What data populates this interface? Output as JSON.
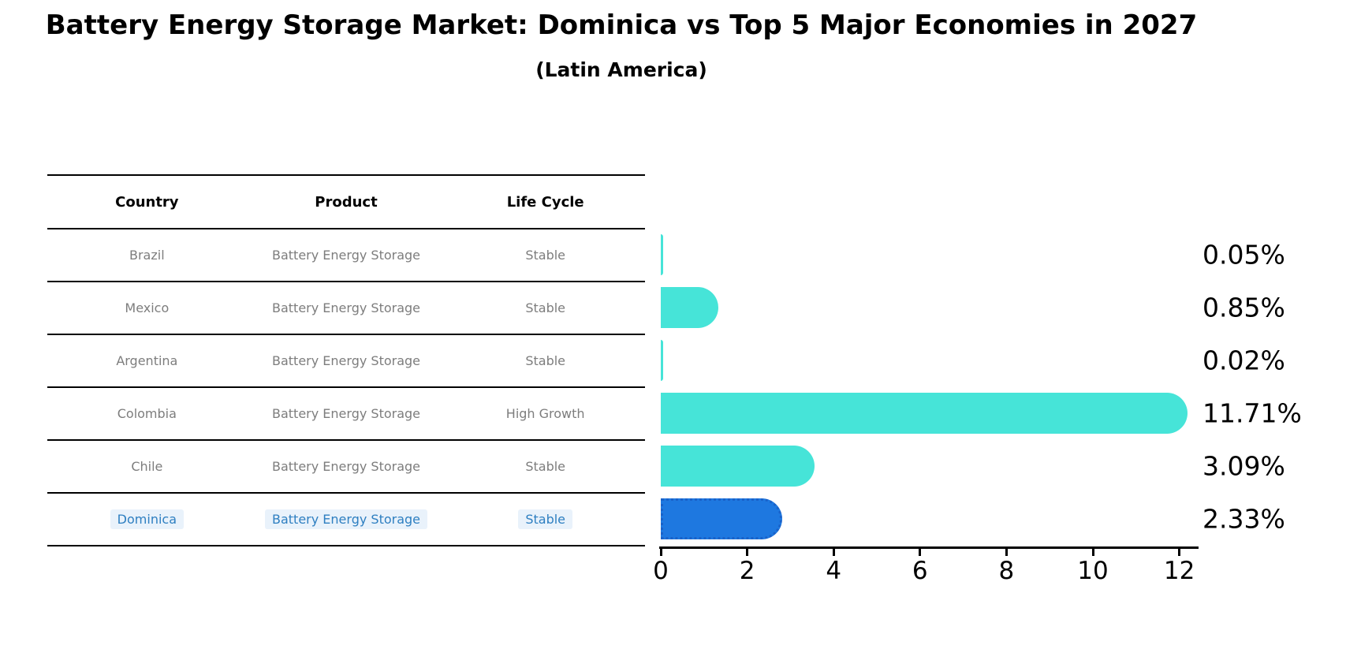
{
  "title": "Battery Energy Storage Market: Dominica vs Top 5 Major Economies in 2027",
  "subtitle": "(Latin America)",
  "table": {
    "headers": [
      "Country",
      "Product",
      "Life Cycle"
    ],
    "rows": [
      {
        "country": "Brazil",
        "product": "Battery Energy Storage",
        "life_cycle": "Stable",
        "highlight": false
      },
      {
        "country": "Mexico",
        "product": "Battery Energy Storage",
        "life_cycle": "Stable",
        "highlight": false
      },
      {
        "country": "Argentina",
        "product": "Battery Energy Storage",
        "life_cycle": "Stable",
        "highlight": false
      },
      {
        "country": "Colombia",
        "product": "Battery Energy Storage",
        "life_cycle": "High Growth",
        "highlight": false
      },
      {
        "country": "Chile",
        "product": "Battery Energy Storage",
        "life_cycle": "Stable",
        "highlight": false
      },
      {
        "country": "Dominica",
        "product": "Battery Energy Storage",
        "life_cycle": "Stable",
        "highlight": true
      }
    ]
  },
  "chart_data": {
    "type": "bar",
    "orientation": "horizontal",
    "title": "Battery Energy Storage Market: Dominica vs Top 5 Major Economies in 2027",
    "subtitle": "(Latin America)",
    "categories": [
      "Brazil",
      "Mexico",
      "Argentina",
      "Colombia",
      "Chile",
      "Dominica"
    ],
    "values": [
      0.05,
      0.85,
      0.02,
      11.71,
      3.09,
      2.33
    ],
    "value_labels": [
      "0.05%",
      "0.85%",
      "0.02%",
      "11.71%",
      "3.09%",
      "2.33%"
    ],
    "xlabel": "",
    "ylabel": "",
    "xlim": [
      0,
      12.4
    ],
    "x_ticks": [
      0,
      2,
      4,
      6,
      8,
      10,
      12
    ],
    "grid": false,
    "legend": "none",
    "highlight_category": "Dominica",
    "colors": {
      "bar": "#46e4d8",
      "highlight_bar": "#1e78e0",
      "highlight_border": "#1a62c9",
      "highlight_text": "#2e7fc1",
      "highlight_chip_bg": "#e9f2fb",
      "row_text": "#7d7d7d",
      "header_text": "#000000",
      "value_label_text": "#000000"
    }
  }
}
